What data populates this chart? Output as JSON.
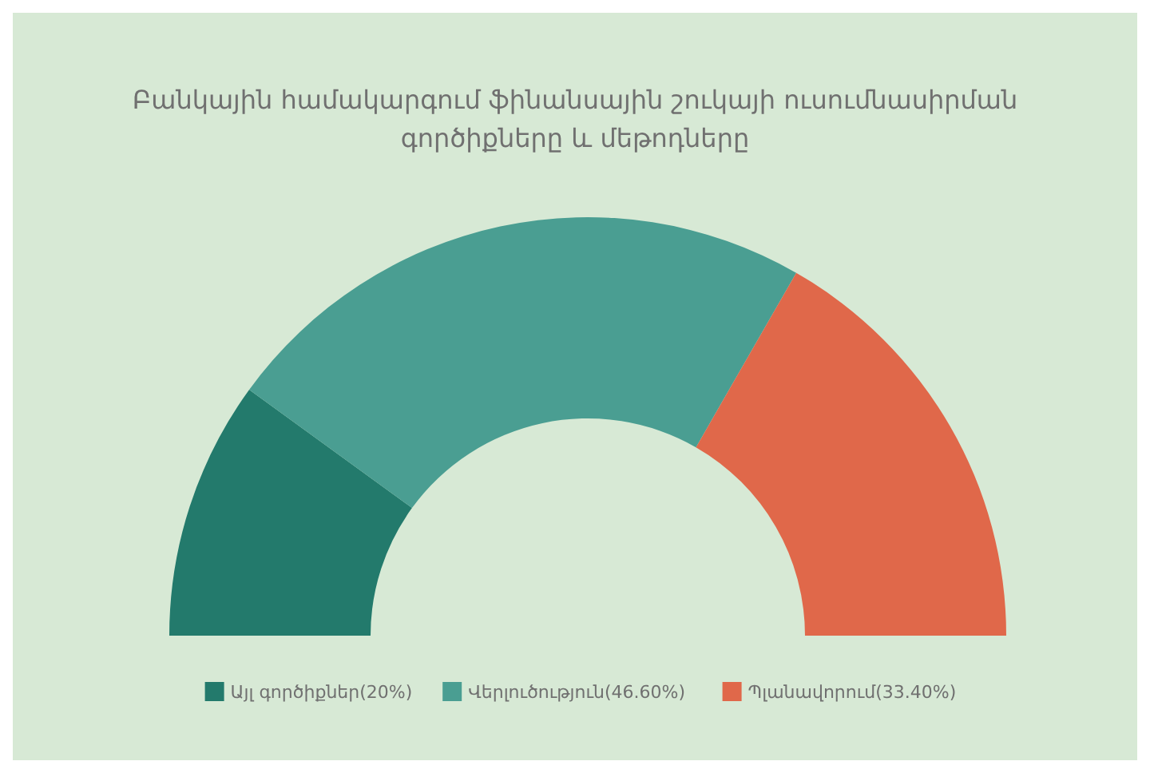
{
  "chart_data": {
    "type": "donut",
    "title": "Բանկային համակարգում ֆինանսային շուկայի ուսումնասիրման գործիքները և մեթոդները",
    "categories": [
      "Այլ գործիքներ(20%)",
      "Վերլուծություն(46.60%)",
      "Պլանավորում(33.40%)"
    ],
    "values": [
      20,
      46.6,
      33.4
    ],
    "colors": [
      "#237a6c",
      "#4a9e92",
      "#e0684a"
    ],
    "legend": "bottom"
  }
}
